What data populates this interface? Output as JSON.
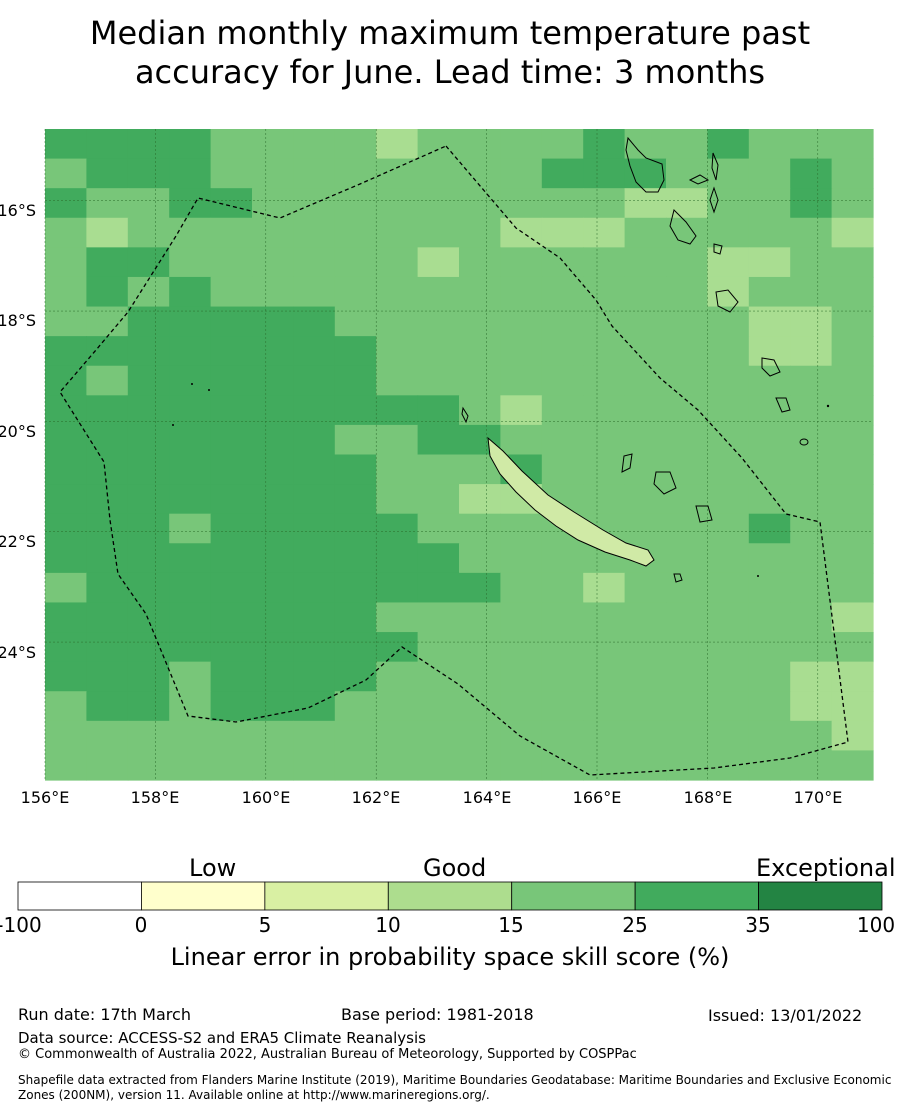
{
  "title": {
    "line1": "Median monthly maximum temperature past",
    "line2": "accuracy for June. Lead time: 3 months"
  },
  "map": {
    "lon_range": [
      156,
      171
    ],
    "lat_range": [
      -26.5,
      -14.7
    ],
    "lat_labels": [
      "16°S",
      "18°S",
      "20°S",
      "22°S",
      "24°S"
    ],
    "lon_labels": [
      "156°E",
      "158°E",
      "160°E",
      "162°E",
      "164°E",
      "166°E",
      "168°E",
      "170°E"
    ],
    "cell_deg": 0.833,
    "category_colors": {
      "c1": "#a9dd91",
      "c2": "#78c679",
      "c3": "#41ab5d"
    },
    "grid_rows": [
      "33332222122223223222",
      "23332222222233322232",
      "32233222222222112232",
      "21222222222111222221",
      "23322222212222221122",
      "23232222222222221222",
      "22333332222222222112",
      "33333333222222222112",
      "32333333222222222222",
      "33333333332122222222",
      "33333332233222222222",
      "33333333222322222222",
      "33333333221122222222",
      "33323333322222222322",
      "33333333332222222222",
      "23333333333221222222",
      "33333333222222222221",
      "33333333322222222222",
      "33323333222222222211",
      "23323332222222222211",
      "22222222222222222221",
      "22222222222222222222"
    ]
  },
  "colorbar": {
    "categories": [
      "Low",
      "Good",
      "Exceptional"
    ],
    "ticks": [
      "-100",
      "0",
      "5",
      "10",
      "15",
      "25",
      "35",
      "100"
    ],
    "colors": [
      "#ffffff",
      "#ffffcc",
      "#d9f0a3",
      "#addd8e",
      "#78c679",
      "#41ab5d",
      "#238443"
    ],
    "label": "Linear error in probability space skill score (%)"
  },
  "footer": {
    "run_date": "Run date: 17th March",
    "base_period": "Base period: 1981-2018",
    "issued": "Issued: 13/01/2022",
    "data_source": "Data source: ACCESS-S2 and ERA5 Climate Reanalysis",
    "copyright": "© Commonwealth of Australia 2022, Australian Bureau of Meteorology, Supported by COSPPac",
    "shapefile": "Shapefile data extracted from Flanders Marine Institute (2019), Maritime Boundaries Geodatabase: Maritime Boundaries and Exclusive Economic Zones (200NM), version 11. Available online at http://www.marineregions.org/."
  }
}
